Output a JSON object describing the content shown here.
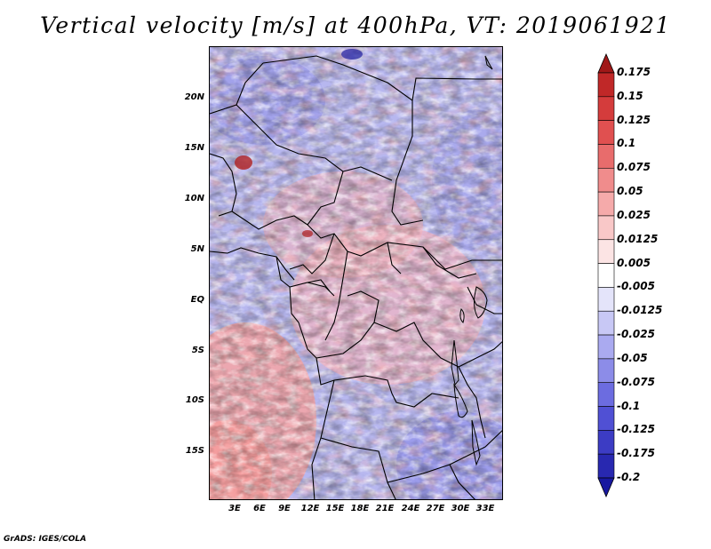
{
  "title": "Vertical velocity [m/s] at 400hPa, VT: 2019061921",
  "credit": "GrADS: IGES/COLA",
  "axes": {
    "lat_labels": [
      "20N",
      "15N",
      "10N",
      "5N",
      "EQ",
      "5S",
      "10S",
      "15S"
    ],
    "lon_labels": [
      "3E",
      "6E",
      "9E",
      "12E",
      "15E",
      "18E",
      "21E",
      "24E",
      "27E",
      "30E",
      "33E"
    ]
  },
  "colorbar": {
    "levels": [
      "0.175",
      "0.15",
      "0.125",
      "0.1",
      "0.075",
      "0.05",
      "0.025",
      "0.0125",
      "0.005",
      "-0.005",
      "-0.0125",
      "-0.025",
      "-0.05",
      "-0.075",
      "-0.1",
      "-0.125",
      "-0.175",
      "-0.2"
    ],
    "colors": [
      "#a01818",
      "#c02828",
      "#d43c3c",
      "#e05050",
      "#e86c6c",
      "#f08c8c",
      "#f5aaaa",
      "#f9c8c8",
      "#fce4e4",
      "#ffffff",
      "#e4e4fa",
      "#c8c8f5",
      "#aaaaf0",
      "#8c8ce8",
      "#6c6ce0",
      "#5050d4",
      "#3c3cc4",
      "#2828b0",
      "#1818a0"
    ]
  }
}
